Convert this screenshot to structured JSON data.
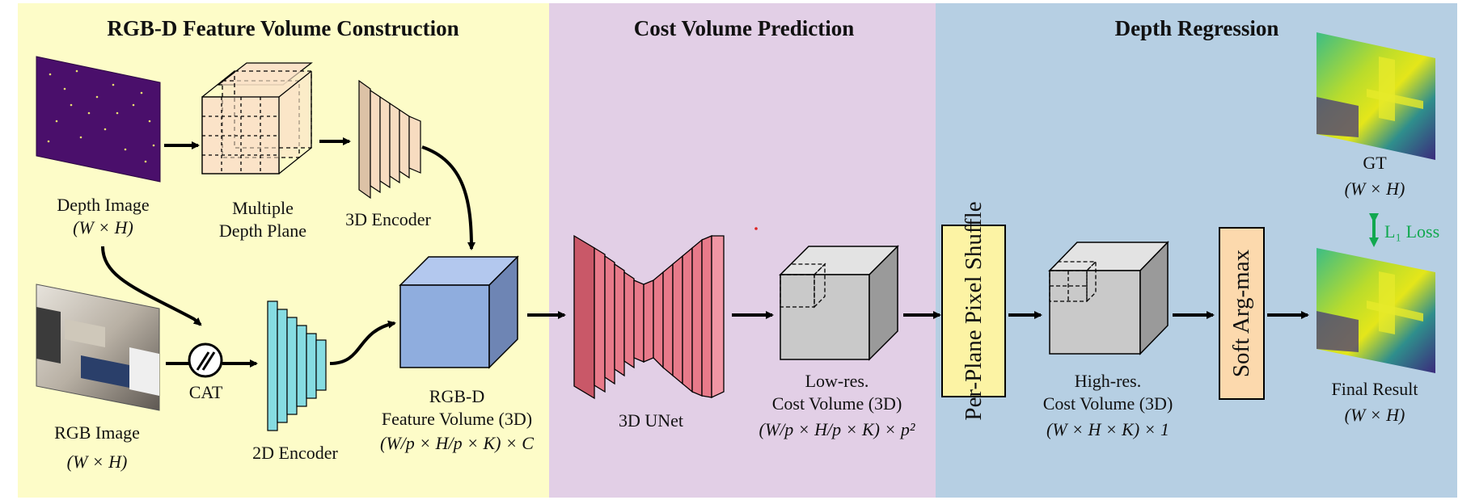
{
  "sections": [
    {
      "title": "RGB-D Feature Volume Construction",
      "color": "#fdfcc8"
    },
    {
      "title": "Cost Volume Prediction",
      "color": "#e2cfe6"
    },
    {
      "title": "Depth Regression",
      "color": "#b6cfe3"
    }
  ],
  "labels": {
    "depth_image": "Depth Image",
    "depth_image_dim": "(W × H)",
    "multiple_depth_plane_1": "Multiple",
    "multiple_depth_plane_2": "Depth Plane",
    "encoder_3d": "3D Encoder",
    "rgb_image": "RGB Image",
    "rgb_image_dim": "(W × H)",
    "cat": "CAT",
    "encoder_2d": "2D Encoder",
    "feature_volume_1": "RGB-D",
    "feature_volume_2": "Feature Volume (3D)",
    "feature_volume_dim": "(W/p × H/p × K) × C",
    "unet_3d": "3D UNet",
    "lowres_1": "Low-res.",
    "lowres_2": "Cost Volume (3D)",
    "lowres_dim": "(W/p × H/p × K) × p²",
    "pixel_shuffle": "Per-Plane Pixel Shuffle",
    "highres_1": "High-res.",
    "highres_2": "Cost Volume (3D)",
    "highres_dim": "(W × H × K) × 1",
    "soft_argmax": "Soft Arg-max",
    "gt": "GT",
    "gt_dim": "(W × H)",
    "l1_loss": "L₁ Loss",
    "final_result": "Final Result",
    "final_dim": "(W × H)"
  },
  "colors": {
    "encoder3d": "#dcc2a6",
    "encoder2d": "#86dce2",
    "feature_cube": "#8fadde",
    "unet": "#e87a8a",
    "cost_cube": "#c9c9c9",
    "pixel_shuffle_box": "#fcf3a4",
    "soft_argmax_box": "#fcd9ad",
    "depth_plane": "#fbe3c8",
    "loss_arrow": "#11a84f",
    "depth_map": "#4a0f6b"
  }
}
